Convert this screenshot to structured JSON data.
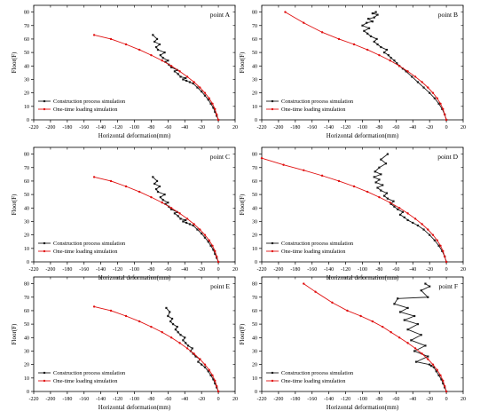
{
  "figure": {
    "colors": {
      "construction": "#1a1a1a",
      "one_time": "#e01010",
      "axis": "#000000"
    }
  },
  "chart_data": [
    {
      "type": "line",
      "panel": "point A",
      "xlabel": "Horizontal deformation(mm)",
      "ylabel": "Floor(F)",
      "xlim": [
        -220,
        20
      ],
      "ylim": [
        0,
        85
      ],
      "xticks": [
        -220,
        -200,
        -180,
        -160,
        -140,
        -120,
        -100,
        -80,
        -60,
        -40,
        -20,
        0,
        20
      ],
      "yticks": [
        0,
        10,
        20,
        30,
        40,
        50,
        60,
        70,
        80
      ],
      "legend_position": "lower-left",
      "series": [
        {
          "name": "Construction process simulation",
          "marker": "square",
          "x": [
            0,
            -2,
            -4,
            -6,
            -9,
            -12,
            -16,
            -20,
            -25,
            -30,
            -34,
            -38,
            -42,
            -39,
            -45,
            -48,
            -52,
            -49,
            -56,
            -59,
            -63,
            -60,
            -66,
            -69,
            -64,
            -72,
            -74,
            -70,
            -76,
            -73,
            -78
          ],
          "y": [
            0,
            3,
            6,
            9,
            12,
            15,
            18,
            21,
            24,
            27,
            28,
            29,
            30,
            31,
            32,
            34,
            36,
            37,
            39,
            41,
            43,
            44,
            46,
            48,
            50,
            52,
            54,
            56,
            58,
            60,
            63
          ]
        },
        {
          "name": "One-time loading simulation",
          "marker": "circle",
          "x": [
            0,
            -2,
            -4,
            -7,
            -11,
            -16,
            -22,
            -29,
            -37,
            -46,
            -56,
            -67,
            -80,
            -94,
            -110,
            -128,
            -148
          ],
          "y": [
            0,
            4,
            8,
            12,
            16,
            20,
            24,
            28,
            32,
            36,
            40,
            44,
            48,
            52,
            56,
            60,
            63
          ]
        }
      ]
    },
    {
      "type": "line",
      "panel": "point B",
      "xlabel": "Horizontal deformation(mm)",
      "ylabel": "Floor(F)",
      "xlim": [
        -220,
        20
      ],
      "ylim": [
        0,
        85
      ],
      "xticks": [
        -220,
        -200,
        -180,
        -160,
        -140,
        -120,
        -100,
        -80,
        -60,
        -40,
        -20,
        0,
        20
      ],
      "yticks": [
        0,
        10,
        20,
        30,
        40,
        50,
        60,
        70,
        80
      ],
      "legend_position": "lower-left",
      "series": [
        {
          "name": "Construction process simulation",
          "marker": "square",
          "x": [
            0,
            -2,
            -5,
            -9,
            -14,
            -20,
            -27,
            -34,
            -41,
            -48,
            -52,
            -56,
            -59,
            -62,
            -66,
            -69,
            -74,
            -71,
            -78,
            -82,
            -86,
            -83,
            -90,
            -94,
            -98,
            -92,
            -100,
            -95,
            -88,
            -93,
            -86,
            -82,
            -88,
            -84
          ],
          "y": [
            0,
            4,
            8,
            12,
            16,
            20,
            24,
            28,
            32,
            36,
            38,
            40,
            42,
            44,
            46,
            48,
            50,
            52,
            54,
            56,
            58,
            60,
            62,
            64,
            66,
            68,
            70,
            72,
            73,
            75,
            76,
            78,
            79,
            80
          ]
        },
        {
          "name": "One-time loading simulation",
          "marker": "circle",
          "x": [
            0,
            -2,
            -4,
            -7,
            -11,
            -16,
            -22,
            -29,
            -37,
            -46,
            -56,
            -67,
            -80,
            -94,
            -110,
            -128,
            -148,
            -170,
            -192
          ],
          "y": [
            0,
            4,
            8,
            12,
            16,
            20,
            24,
            28,
            32,
            36,
            40,
            44,
            48,
            52,
            56,
            60,
            65,
            72,
            80
          ]
        }
      ]
    },
    {
      "type": "line",
      "panel": "point C",
      "xlabel": "Horizontal deformation(mm)",
      "ylabel": "Floor(F)",
      "xlim": [
        -220,
        20
      ],
      "ylim": [
        0,
        85
      ],
      "xticks": [
        -220,
        -200,
        -180,
        -160,
        -140,
        -120,
        -100,
        -80,
        -60,
        -40,
        -20,
        0,
        20
      ],
      "yticks": [
        0,
        10,
        20,
        30,
        40,
        50,
        60,
        70,
        80
      ],
      "legend_position": "lower-left",
      "series": [
        {
          "name": "Construction process simulation",
          "marker": "square",
          "x": [
            0,
            -2,
            -4,
            -6,
            -9,
            -12,
            -16,
            -20,
            -25,
            -30,
            -34,
            -38,
            -42,
            -39,
            -45,
            -48,
            -52,
            -49,
            -56,
            -59,
            -63,
            -60,
            -66,
            -69,
            -64,
            -72,
            -74,
            -70,
            -76,
            -73,
            -78
          ],
          "y": [
            0,
            3,
            6,
            9,
            12,
            15,
            18,
            21,
            24,
            27,
            28,
            29,
            30,
            31,
            32,
            34,
            36,
            37,
            39,
            41,
            43,
            44,
            46,
            48,
            50,
            52,
            54,
            56,
            58,
            60,
            63
          ]
        },
        {
          "name": "One-time loading simulation",
          "marker": "circle",
          "x": [
            0,
            -2,
            -4,
            -7,
            -11,
            -16,
            -22,
            -29,
            -37,
            -46,
            -56,
            -67,
            -80,
            -94,
            -110,
            -128,
            -148
          ],
          "y": [
            0,
            4,
            8,
            12,
            16,
            20,
            24,
            28,
            32,
            36,
            40,
            44,
            48,
            52,
            56,
            60,
            63
          ]
        }
      ]
    },
    {
      "type": "line",
      "panel": "point D",
      "xlabel": "Horizontal deformation(mm)",
      "ylabel": "Floor(F)",
      "xlim": [
        -220,
        20
      ],
      "ylim": [
        0,
        85
      ],
      "xticks": [
        -220,
        -200,
        -180,
        -160,
        -140,
        -120,
        -100,
        -80,
        -60,
        -40,
        -20,
        0,
        20
      ],
      "yticks": [
        0,
        10,
        20,
        30,
        40,
        50,
        60,
        70,
        80
      ],
      "legend_position": "lower-left",
      "series": [
        {
          "name": "Construction process simulation",
          "marker": "square",
          "x": [
            0,
            -2,
            -5,
            -9,
            -14,
            -20,
            -27,
            -34,
            -40,
            -46,
            -50,
            -55,
            -52,
            -58,
            -62,
            -66,
            -63,
            -70,
            -74,
            -71,
            -78,
            -82,
            -76,
            -84,
            -80,
            -86,
            -78,
            -85,
            -80,
            -72,
            -78,
            -70
          ],
          "y": [
            0,
            4,
            8,
            12,
            16,
            20,
            24,
            27,
            29,
            31,
            33,
            35,
            37,
            39,
            41,
            43,
            45,
            47,
            49,
            51,
            53,
            55,
            57,
            59,
            61,
            63,
            65,
            67,
            70,
            73,
            76,
            80
          ]
        },
        {
          "name": "One-time loading simulation",
          "marker": "circle",
          "x": [
            0,
            -2,
            -4,
            -7,
            -11,
            -16,
            -22,
            -29,
            -37,
            -46,
            -56,
            -67,
            -80,
            -94,
            -110,
            -128,
            -148,
            -170,
            -194,
            -220
          ],
          "y": [
            0,
            4,
            8,
            12,
            16,
            20,
            24,
            28,
            32,
            36,
            40,
            44,
            48,
            52,
            56,
            60,
            64,
            68,
            72,
            77
          ]
        }
      ]
    },
    {
      "type": "line",
      "panel": "point E",
      "xlabel": "Horizontal deformation(mm)",
      "ylabel": "Floor(F)",
      "xlim": [
        -220,
        20
      ],
      "ylim": [
        0,
        85
      ],
      "xticks": [
        -220,
        -200,
        -180,
        -160,
        -140,
        -120,
        -100,
        -80,
        -60,
        -40,
        -20,
        0,
        20
      ],
      "yticks": [
        0,
        10,
        20,
        30,
        40,
        50,
        60,
        70,
        80
      ],
      "legend_position": "lower-left",
      "series": [
        {
          "name": "Construction process simulation",
          "marker": "square",
          "x": [
            0,
            -2,
            -4,
            -6,
            -9,
            -12,
            -16,
            -20,
            -24,
            -22,
            -27,
            -30,
            -33,
            -31,
            -36,
            -39,
            -42,
            -40,
            -45,
            -48,
            -51,
            -49,
            -54,
            -57,
            -55,
            -60,
            -58,
            -62
          ],
          "y": [
            0,
            3,
            6,
            9,
            12,
            15,
            18,
            20,
            22,
            24,
            26,
            28,
            30,
            32,
            34,
            36,
            38,
            40,
            42,
            44,
            46,
            48,
            50,
            52,
            54,
            56,
            59,
            62
          ]
        },
        {
          "name": "One-time loading simulation",
          "marker": "circle",
          "x": [
            0,
            -2,
            -4,
            -7,
            -11,
            -16,
            -22,
            -29,
            -37,
            -46,
            -56,
            -67,
            -80,
            -94,
            -110,
            -128,
            -148
          ],
          "y": [
            0,
            4,
            8,
            12,
            16,
            20,
            24,
            28,
            32,
            36,
            40,
            44,
            48,
            52,
            56,
            60,
            63
          ]
        }
      ]
    },
    {
      "type": "line",
      "panel": "point F",
      "xlabel": "Horizontal deformation(mm)",
      "ylabel": "Floor(F)",
      "xlim": [
        -220,
        20
      ],
      "ylim": [
        0,
        85
      ],
      "xticks": [
        -220,
        -200,
        -180,
        -160,
        -140,
        -120,
        -100,
        -80,
        -60,
        -40,
        -20,
        0,
        20
      ],
      "yticks": [
        0,
        10,
        20,
        30,
        40,
        50,
        60,
        70,
        80
      ],
      "legend_position": "lower-left",
      "series": [
        {
          "name": "Construction process simulation",
          "marker": "square",
          "x": [
            0,
            -2,
            -4,
            -6,
            -9,
            -12,
            -15,
            -18,
            -20,
            -36,
            -22,
            -38,
            -25,
            -42,
            -30,
            -46,
            -34,
            -50,
            -38,
            -55,
            -46,
            -62,
            -58,
            -22,
            -30,
            -20,
            -25
          ],
          "y": [
            0,
            3,
            6,
            9,
            12,
            15,
            18,
            19,
            20,
            22,
            26,
            30,
            34,
            38,
            42,
            46,
            50,
            53,
            56,
            59,
            62,
            65,
            69,
            70,
            75,
            78,
            80
          ]
        },
        {
          "name": "One-time loading simulation",
          "marker": "circle",
          "x": [
            0,
            -2,
            -4,
            -7,
            -11,
            -16,
            -22,
            -29,
            -37,
            -46,
            -56,
            -66,
            -76,
            -88,
            -102,
            -118,
            -136,
            -156,
            -170
          ],
          "y": [
            0,
            4,
            8,
            12,
            16,
            20,
            24,
            28,
            32,
            36,
            40,
            44,
            48,
            52,
            56,
            60,
            66,
            74,
            80
          ]
        }
      ]
    }
  ]
}
